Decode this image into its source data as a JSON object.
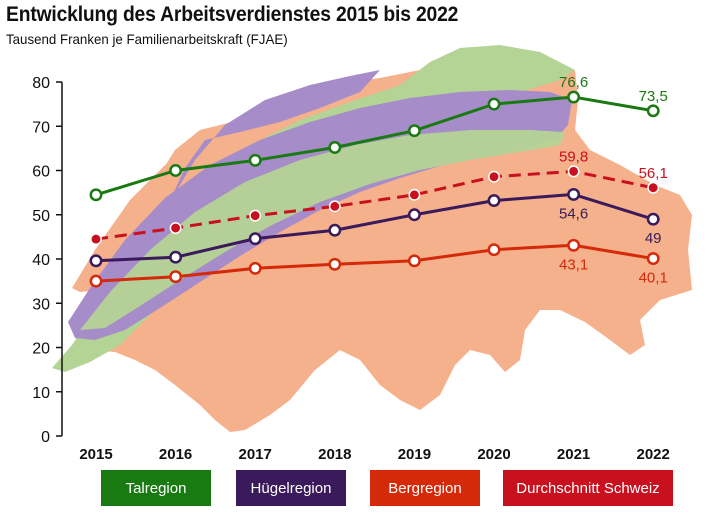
{
  "title": "Entwicklung des Arbeitsverdienstes 2015 bis 2022",
  "subtitle": "Tausend Franken je Familienarbeitskraft (FJAE)",
  "colors": {
    "talregion": "#1a7a12",
    "huegelregion": "#3a1a5a",
    "bergregion": "#d42a0a",
    "durchschnitt": "#c8101e",
    "map_flat": "#f5b08c",
    "map_green": "#b4d496",
    "map_purple": "#a68cc8"
  },
  "chart_data": {
    "type": "line",
    "x": [
      "2015",
      "2016",
      "2017",
      "2018",
      "2019",
      "2020",
      "2021",
      "2022"
    ],
    "ylim": [
      0,
      80
    ],
    "yticks": [
      "0",
      "10",
      "20",
      "30",
      "40",
      "50",
      "60",
      "70",
      "80"
    ],
    "grid": false,
    "legend_position": "bottom",
    "series": [
      {
        "name": "Talregion",
        "color": "#1a7a12",
        "values": [
          54.5,
          60.0,
          62.3,
          65.2,
          69.0,
          75.0,
          76.6,
          73.5
        ],
        "dashed": false,
        "labels": [
          {
            "index": 6,
            "text": "76,6",
            "pos": "above"
          },
          {
            "index": 7,
            "text": "73,5",
            "pos": "above"
          }
        ]
      },
      {
        "name": "Hügelregion",
        "color": "#3a1a5a",
        "values": [
          39.6,
          40.4,
          44.6,
          46.5,
          50.0,
          53.2,
          54.6,
          49.0
        ],
        "dashed": false,
        "labels": [
          {
            "index": 6,
            "text": "54,6",
            "pos": "below"
          },
          {
            "index": 7,
            "text": "49",
            "pos": "below"
          }
        ]
      },
      {
        "name": "Bergregion",
        "color": "#d42a0a",
        "values": [
          35.0,
          36.0,
          37.9,
          38.8,
          39.6,
          42.1,
          43.1,
          40.1
        ],
        "dashed": false,
        "labels": [
          {
            "index": 6,
            "text": "43,1",
            "pos": "below"
          },
          {
            "index": 7,
            "text": "40,1",
            "pos": "below"
          }
        ]
      },
      {
        "name": "Durchschnitt Schweiz",
        "color": "#c8101e",
        "values": [
          44.5,
          47.0,
          49.8,
          51.9,
          54.5,
          58.6,
          59.8,
          56.1
        ],
        "dashed": true,
        "labels": [
          {
            "index": 6,
            "text": "59,8",
            "pos": "above"
          },
          {
            "index": 7,
            "text": "56,1",
            "pos": "above"
          }
        ]
      }
    ]
  },
  "legend": [
    {
      "label": "Talregion",
      "color": "#1a7a12"
    },
    {
      "label": "Hügelregion",
      "color": "#3a1a5a"
    },
    {
      "label": "Bergregion",
      "color": "#d42a0a"
    },
    {
      "label": "Durchschnitt Schweiz",
      "color": "#c8101e"
    }
  ]
}
